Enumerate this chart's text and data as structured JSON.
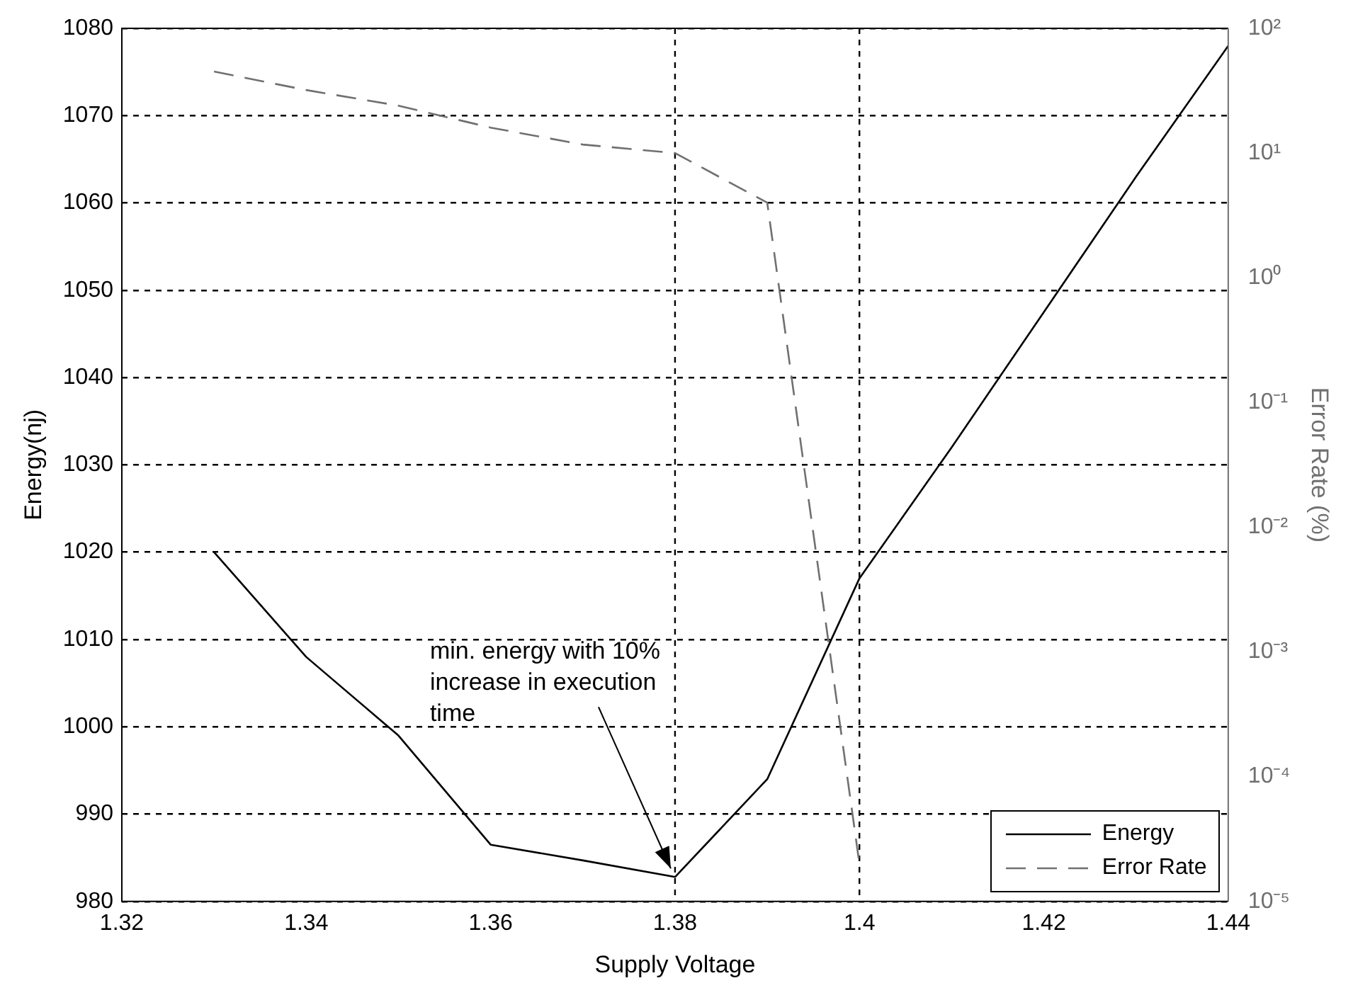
{
  "chart_data": {
    "type": "line",
    "xlabel": "Supply Voltage",
    "ylabel": "Energy(nj)",
    "y2label": "Error Rate (%)",
    "x": [
      1.33,
      1.34,
      1.35,
      1.36,
      1.37,
      1.38,
      1.39,
      1.4,
      1.41,
      1.42,
      1.43,
      1.44
    ],
    "series": [
      {
        "name": "Energy",
        "color": "#000000",
        "line_style": "solid",
        "values": [
          1020,
          1008,
          999,
          986.5,
          984.7,
          982.8,
          994,
          1017,
          1032,
          1047.5,
          1063,
          1078
        ]
      },
      {
        "name": "Error Rate",
        "color": "#707070",
        "line_style": "dashed",
        "axis": "y2",
        "x": [
          1.33,
          1.34,
          1.35,
          1.36,
          1.37,
          1.38,
          1.39,
          1.4
        ],
        "values": [
          45,
          32,
          24,
          16,
          11.7,
          10,
          4,
          2e-05
        ]
      }
    ],
    "xlim": [
      1.32,
      1.44
    ],
    "xticks": [
      1.32,
      1.34,
      1.36,
      1.38,
      {
        "value": 1.4,
        "label": "1.4"
      },
      1.42,
      1.44
    ],
    "ylim": [
      980,
      1080
    ],
    "yticks": [
      980,
      990,
      1000,
      1010,
      1020,
      1030,
      1040,
      1050,
      1060,
      1070,
      1080
    ],
    "y2lim": [
      1e-05,
      100
    ],
    "y2ticks": [
      {
        "value": 1e-05,
        "label": "10⁻⁵"
      },
      {
        "value": 0.0001,
        "label": "10⁻⁴"
      },
      {
        "value": 0.001,
        "label": "10⁻³"
      },
      {
        "value": 0.01,
        "label": "10⁻²"
      },
      {
        "value": 0.1,
        "label": "10⁻¹"
      },
      {
        "value": 1,
        "label": "10⁰"
      },
      {
        "value": 10,
        "label": "10¹"
      },
      {
        "value": 100,
        "label": "10²"
      }
    ],
    "log": "y2",
    "grid": "y",
    "legend": "bottom right",
    "marker": "none",
    "ref_lines": [
      {
        "axis": "x",
        "value": 1.38,
        "color": "#000000",
        "line_style": "dashed"
      },
      {
        "axis": "x",
        "value": 1.4,
        "color": "#000000",
        "line_style": "dashed"
      }
    ],
    "annotations": [
      {
        "text": "min. energy with 10%\nincrease in execution\ntime",
        "x": 1.38,
        "y": 982.8
      }
    ]
  }
}
